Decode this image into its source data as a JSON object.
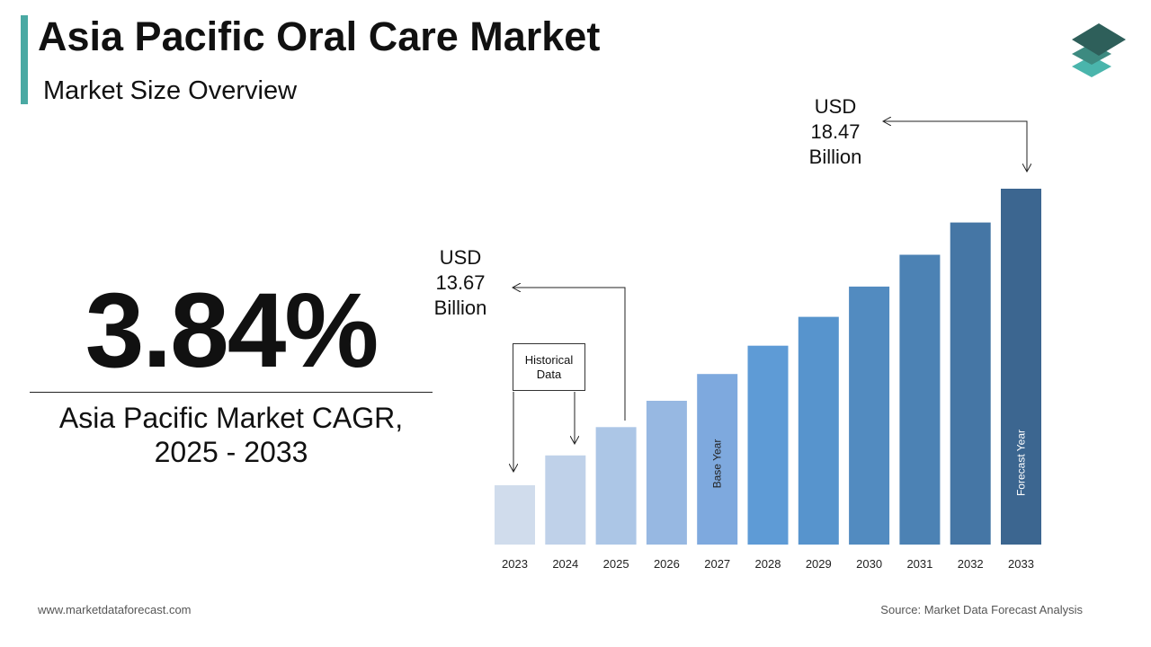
{
  "header": {
    "title": "Asia Pacific Oral Care Market",
    "subtitle": "Market Size Overview"
  },
  "cagr": {
    "value": "3.84%",
    "label_line1": "Asia Pacific Market CAGR,",
    "label_line2": "2025 - 2033"
  },
  "callouts": {
    "start": {
      "line1": "USD",
      "line2": "13.67",
      "line3": "Billion"
    },
    "end": {
      "line1": "USD",
      "line2": "18.47",
      "line3": "Billion"
    },
    "historical": {
      "line1": "Historical",
      "line2": "Data"
    }
  },
  "footer": {
    "website": "www.marketdataforecast.com",
    "source": "Source: Market Data Forecast Analysis"
  },
  "colors": {
    "accent": "#4aa9a3",
    "logo_top": "#2e5f5a",
    "logo_mid": "#3d8a80",
    "logo_bottom": "#4ab5ac"
  },
  "icons": {
    "logo": "stacked-layers-icon"
  },
  "chart_data": {
    "type": "bar",
    "categories": [
      "2023",
      "2024",
      "2025",
      "2026",
      "2027",
      "2028",
      "2029",
      "2030",
      "2031",
      "2032",
      "2033"
    ],
    "values": [
      12.5,
      13.1,
      13.67,
      14.2,
      14.74,
      15.31,
      15.89,
      16.5,
      17.14,
      17.79,
      18.47
    ],
    "bar_labels": {
      "2027": "Base Year",
      "2033": "Forecast Year"
    },
    "bar_colors": [
      "#d0dcec",
      "#bfd1e9",
      "#acc6e6",
      "#97b8e2",
      "#7ea9de",
      "#5e9bd6",
      "#5794cd",
      "#528bc0",
      "#4c82b4",
      "#4576a5",
      "#3c6690"
    ],
    "title": "",
    "xlabel": "",
    "ylabel": "",
    "grid": false,
    "legend": "none"
  }
}
